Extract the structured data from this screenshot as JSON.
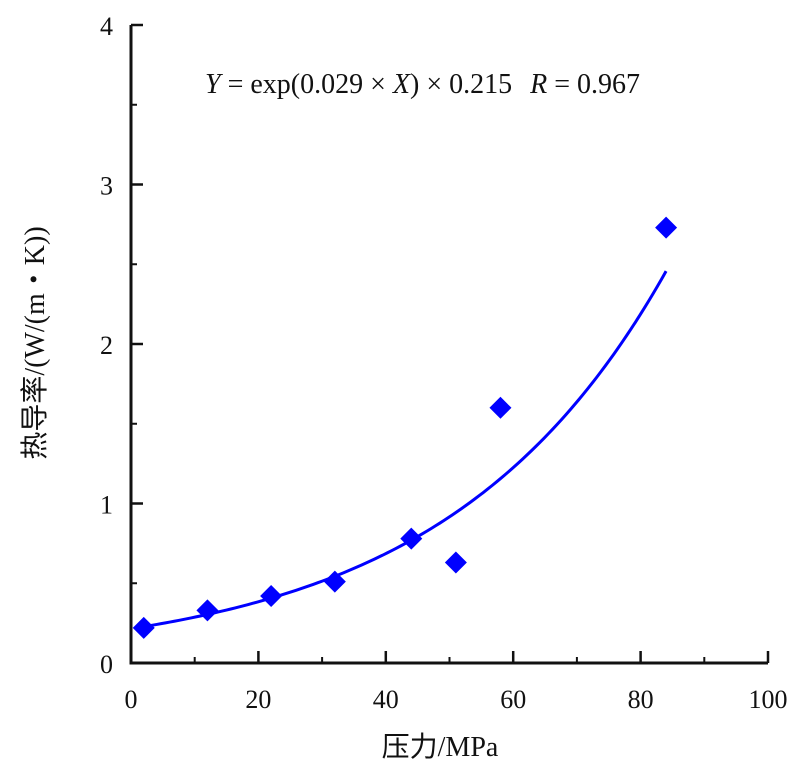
{
  "chart_data": {
    "type": "scatter",
    "xlabel": "压力/MPa",
    "ylabel": "热导率/(W/(m・K))",
    "xlim": [
      0,
      100
    ],
    "ylim": [
      0,
      4
    ],
    "x_ticks": [
      0,
      20,
      40,
      60,
      80,
      100
    ],
    "y_ticks": [
      0,
      1,
      2,
      3,
      4
    ],
    "x_tick_labels": [
      "0",
      "20",
      "40",
      "60",
      "80",
      "100"
    ],
    "y_tick_labels": [
      "0",
      "1",
      "2",
      "3",
      "4"
    ],
    "grid": false,
    "series": [
      {
        "points": [
          {
            "x": 2,
            "y": 0.22
          },
          {
            "x": 12,
            "y": 0.33
          },
          {
            "x": 22,
            "y": 0.42
          },
          {
            "x": 32,
            "y": 0.51
          },
          {
            "x": 44,
            "y": 0.78
          },
          {
            "x": 51,
            "y": 0.63
          },
          {
            "x": 58,
            "y": 1.6
          },
          {
            "x": 84,
            "y": 2.73
          }
        ],
        "marker": "diamond",
        "color": "#0000ff"
      }
    ],
    "fit": {
      "a": 0.215,
      "b": 0.029,
      "x_range": [
        2,
        84
      ],
      "color": "#0000ff"
    },
    "annotation": {
      "y_var": "Y",
      "eq": " = exp(0.029 × ",
      "x_var": "X",
      "tail": ") × 0.215",
      "r_var": "R",
      "r_val": " = 0.967"
    }
  }
}
